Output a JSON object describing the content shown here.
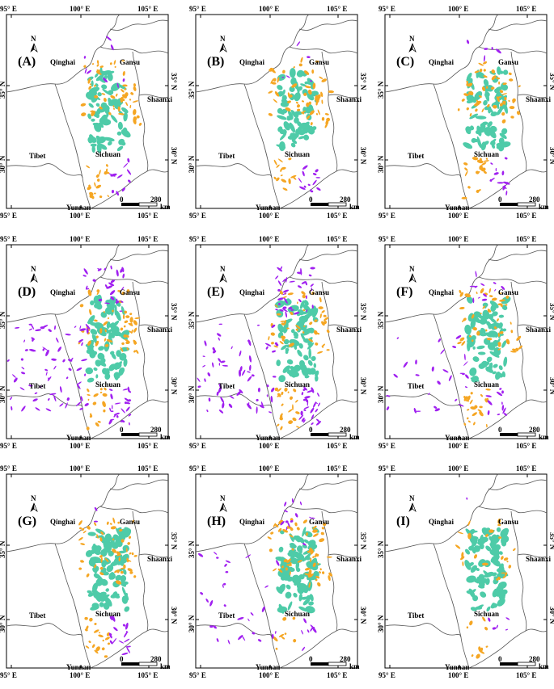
{
  "axes": {
    "top_ticks": [
      "95° E",
      "100° E",
      "105° E"
    ],
    "bottom_ticks": [
      "95° E",
      "100° E",
      "105° E"
    ],
    "left_ticks": [
      "35° N",
      "30° N"
    ],
    "right_ticks": [
      "35° N",
      "30° N"
    ]
  },
  "regions": {
    "qinghai": "Qinghai",
    "gansu": "Gansu",
    "shaanxi": "Shaanxi",
    "tibet": "Tibet",
    "sichuan": "Sichuan",
    "yunnan": "Yunnan"
  },
  "north_label": "N",
  "scale": {
    "zero": "0",
    "value": "280",
    "unit": "km"
  },
  "colors": {
    "teal": "#4ecba8",
    "orange": "#f5a623",
    "purple": "#a020f0",
    "border": "#555555"
  },
  "panels": [
    {
      "label": "(A)",
      "purple_level": 1
    },
    {
      "label": "(B)",
      "purple_level": 1
    },
    {
      "label": "(C)",
      "purple_level": 1
    },
    {
      "label": "(D)",
      "purple_level": 3
    },
    {
      "label": "(E)",
      "purple_level": 3
    },
    {
      "label": "(F)",
      "purple_level": 2
    },
    {
      "label": "(G)",
      "purple_level": 1
    },
    {
      "label": "(H)",
      "purple_level": 2
    },
    {
      "label": "(I)",
      "purple_level": 0
    }
  ]
}
